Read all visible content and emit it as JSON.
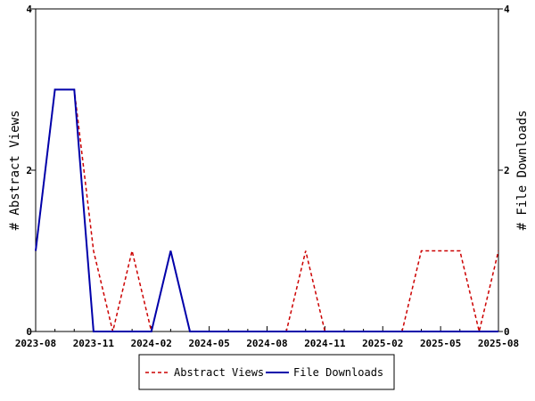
{
  "chart_data": {
    "type": "line",
    "x": [
      "2023-08",
      "2023-09",
      "2023-10",
      "2023-11",
      "2023-12",
      "2024-01",
      "2024-02",
      "2024-03",
      "2024-04",
      "2024-05",
      "2024-06",
      "2024-07",
      "2024-08",
      "2024-09",
      "2024-10",
      "2024-11",
      "2024-12",
      "2025-01",
      "2025-02",
      "2025-03",
      "2025-04",
      "2025-05",
      "2025-06",
      "2025-07",
      "2025-08"
    ],
    "x_tick_labels": [
      "2023-08",
      "2023-11",
      "2024-02",
      "2024-05",
      "2024-08",
      "2024-11",
      "2025-02",
      "2025-05",
      "2025-08"
    ],
    "y_left": {
      "label": "# Abstract Views",
      "ticks": [
        "0",
        "2",
        "4"
      ],
      "range": [
        0,
        4
      ]
    },
    "y_right": {
      "label": "# File Downloads",
      "ticks": [
        "0",
        "2",
        "4"
      ],
      "range": [
        0,
        4
      ]
    },
    "series": [
      {
        "name": "Abstract Views",
        "axis": "left",
        "color": "#cc0000",
        "style": "dashed",
        "values": [
          1,
          3,
          3,
          1,
          0,
          1,
          0,
          1,
          0,
          0,
          0,
          0,
          0,
          0,
          1,
          0,
          0,
          0,
          0,
          0,
          1,
          1,
          1,
          0,
          1
        ]
      },
      {
        "name": "File Downloads",
        "axis": "right",
        "color": "#0000aa",
        "style": "solid",
        "values": [
          1,
          3,
          3,
          0,
          0,
          0,
          0,
          1,
          0,
          0,
          0,
          0,
          0,
          0,
          0,
          0,
          0,
          0,
          0,
          0,
          0,
          0,
          0,
          0,
          0
        ]
      }
    ],
    "legend": {
      "placement": "bottom-center"
    },
    "grid": false
  }
}
